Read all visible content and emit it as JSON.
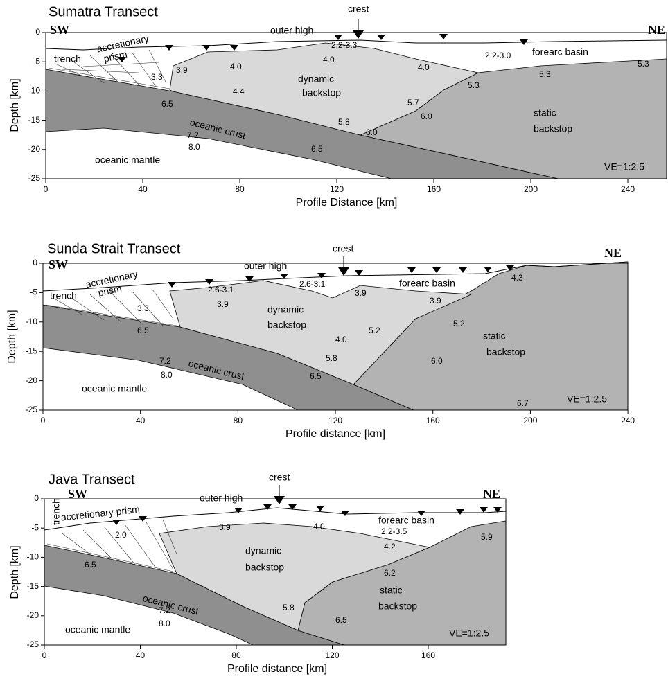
{
  "panels": [
    {
      "title": "Sumatra Transect",
      "x_label": "Profile Distance [km]",
      "y_label": "Depth [km]",
      "x_ticks": [
        0,
        40,
        80,
        120,
        160,
        200,
        240
      ],
      "y_ticks": [
        0,
        -5,
        -10,
        -15,
        -20,
        -25
      ],
      "annotations": [
        "SW",
        "NE",
        "crest",
        "outer high",
        "accretionary",
        "prism",
        "trench",
        "forearc basin",
        "2.2-3.3",
        "2.2-3.0",
        "4.0",
        "4.0",
        "3.9",
        "4.0",
        "3.3",
        "dynamic",
        "backstop",
        "4.4",
        "5.3",
        "5.3",
        "5.3",
        "6.5",
        "5.7",
        "6.0",
        "5.8",
        "6.0",
        "static",
        "backstop",
        "oceanic crust",
        "7.2",
        "8.0",
        "6.5",
        "oceanic mantle",
        "VE=1:2.5"
      ]
    },
    {
      "title": "Sunda Strait Transect",
      "x_label": "Profile distance [km]",
      "y_label": "Depth [km]",
      "x_ticks": [
        0,
        40,
        80,
        120,
        160,
        200,
        240
      ],
      "y_ticks": [
        0,
        -5,
        -10,
        -15,
        -20,
        -25
      ],
      "annotations": [
        "SW",
        "NE",
        "crest",
        "outer high",
        "accretionary",
        "prism",
        "trench",
        "2.6-3.1",
        "2.6-3.1",
        "forearc basin",
        "3.9",
        "3.9",
        "3.9",
        "4.3",
        "dynamic",
        "backstop",
        "3.3",
        "6.5",
        "5.2",
        "4.0",
        "5.2",
        "static",
        "backstop",
        "5.8",
        "6.0",
        "oceanic crust",
        "7.2",
        "8.0",
        "6.5",
        "oceanic mantle",
        "6.7",
        "VE=1:2.5"
      ]
    },
    {
      "title": "Java Transect",
      "x_label": "Profile distance [km]",
      "y_label": "Depth [km]",
      "x_ticks": [
        0,
        40,
        80,
        120,
        160
      ],
      "y_ticks": [
        0,
        -5,
        -10,
        -15,
        -20,
        -25
      ],
      "annotations": [
        "SW",
        "NE",
        "crest",
        "outer high",
        "trench",
        "accretionary prism",
        "2.0",
        "3.9",
        "4.0",
        "forearc basin",
        "2.2-3.5",
        "5.9",
        "dynamic",
        "backstop",
        "4.2",
        "6.5",
        "6.2",
        "static",
        "backstop",
        "5.8",
        "oceanic crust",
        "7.2",
        "8.0",
        "6.5",
        "oceanic mantle",
        "VE=1:2.5"
      ]
    }
  ]
}
